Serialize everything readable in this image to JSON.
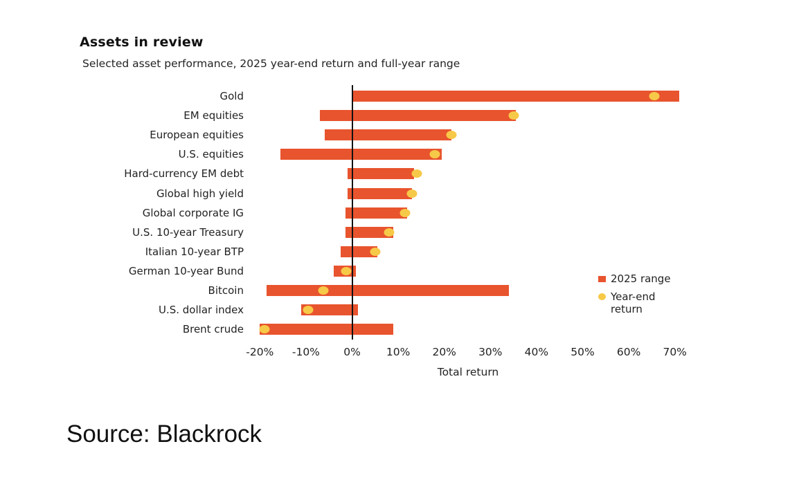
{
  "header": {
    "title": "Assets in review",
    "subtitle": "Selected asset performance, 2025 year-end return and full-year range"
  },
  "colors": {
    "range_bar": "#E8542E",
    "year_end_dot": "#F7C948",
    "zero_line": "#111111"
  },
  "legend": {
    "range_label": "2025 range",
    "dot_label": "Year-end return"
  },
  "source": "Source: Blackrock",
  "chart_data": {
    "type": "bar",
    "subtype": "horizontal range bar with point markers",
    "title": "Assets in review",
    "subtitle": "Selected asset performance, 2025 year-end return and full-year range",
    "xlabel": "Total return",
    "ylabel": "",
    "xlim": [
      -20,
      72
    ],
    "x_ticks": [
      "-20%",
      "-10%",
      "0%",
      "10%",
      "20%",
      "30%",
      "40%",
      "50%",
      "60%",
      "70%"
    ],
    "x_tick_values": [
      -20,
      -10,
      0,
      10,
      20,
      30,
      40,
      50,
      60,
      70
    ],
    "grid": false,
    "legend_position": "right",
    "categories": [
      "Gold",
      "EM equities",
      "European equities",
      "U.S. equities",
      "Hard-currency EM debt",
      "Global high yield",
      "Global corporate IG",
      "U.S. 10-year Treasury",
      "Italian 10-year BTP",
      "German 10-year Bund",
      "Bitcoin",
      "U.S. dollar index",
      "Brent crude"
    ],
    "series": [
      {
        "name": "2025 range (min)",
        "values": [
          0,
          -7,
          -6,
          -15.5,
          -1,
          -1,
          -1.5,
          -1.5,
          -2.5,
          -4,
          -18.5,
          -11,
          -20
        ]
      },
      {
        "name": "2025 range (max)",
        "values": [
          71,
          35.5,
          21.5,
          19.5,
          13.5,
          13,
          12,
          9,
          5.5,
          0.8,
          34,
          1.3,
          9
        ]
      },
      {
        "name": "Year-end return",
        "values": [
          65.5,
          35,
          21.5,
          18,
          14,
          13,
          11.5,
          8,
          5,
          -1.3,
          -6.3,
          -9.5,
          -19
        ]
      }
    ]
  }
}
